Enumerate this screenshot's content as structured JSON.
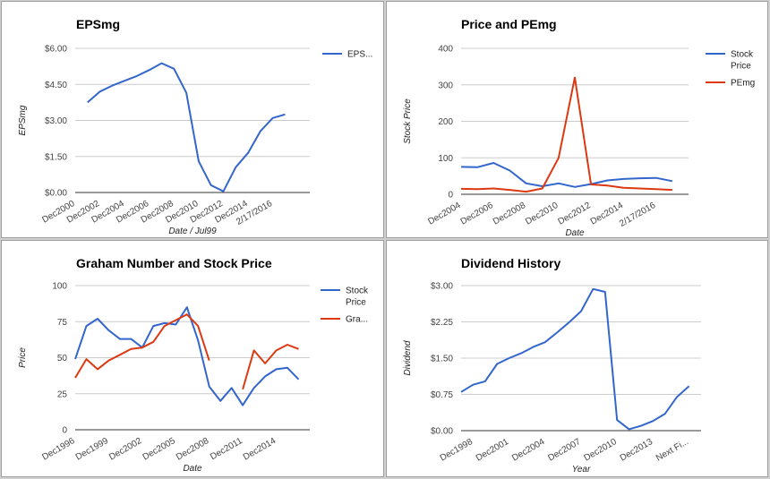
{
  "chart_data": [
    {
      "type": "line",
      "title": "EPSmg",
      "xlabel": "Date / Jul99",
      "ylabel": "EPSmg",
      "ylim": [
        0,
        6
      ],
      "yticks": [
        0,
        1.5,
        3,
        4.5,
        6
      ],
      "ytick_labels": [
        "$0.00",
        "$1.50",
        "$3.00",
        "$4.50",
        "$6.00"
      ],
      "xlim": [
        0,
        19
      ],
      "xticks": [
        0,
        2,
        4,
        6,
        8,
        10,
        12,
        14,
        16
      ],
      "xtick_labels": [
        "Dec2000",
        "Dec2002",
        "Dec2004",
        "Dec2006",
        "Dec2008",
        "Dec2010",
        "Dec2012",
        "Dec2014",
        "2/17/2016"
      ],
      "legend_position": "right",
      "series": [
        {
          "name": "EPS...",
          "color": "#3366cc",
          "x": [
            1,
            2,
            3,
            4,
            5,
            6,
            7,
            8,
            9,
            10,
            11,
            12,
            13,
            14,
            15,
            16,
            17,
            18
          ],
          "values": [
            3.75,
            4.2,
            4.45,
            4.65,
            4.85,
            5.1,
            5.38,
            5.15,
            4.15,
            1.3,
            0.3,
            0.05,
            1.05,
            1.65,
            2.55,
            3.1,
            3.25,
            null
          ]
        }
      ]
    },
    {
      "type": "line",
      "title": "Price and PEmg",
      "xlabel": "Date",
      "ylabel": "Stock Price",
      "ylim": [
        0,
        400
      ],
      "yticks": [
        0,
        100,
        200,
        300,
        400
      ],
      "ytick_labels": [
        "0",
        "100",
        "200",
        "300",
        "400"
      ],
      "xlim": [
        0,
        14
      ],
      "xticks": [
        0,
        2,
        4,
        6,
        8,
        10,
        12
      ],
      "xtick_labels": [
        "Dec2004",
        "Dec2006",
        "Dec2008",
        "Dec2010",
        "Dec2012",
        "Dec2014",
        "2/17/2016"
      ],
      "legend_position": "right",
      "series": [
        {
          "name": "Stock Price",
          "color": "#3366cc",
          "x": [
            0,
            1,
            2,
            3,
            4,
            5,
            6,
            7,
            8,
            9,
            10,
            11,
            12,
            13
          ],
          "values": [
            75,
            74,
            86,
            65,
            30,
            22,
            30,
            20,
            28,
            38,
            42,
            44,
            45,
            36
          ]
        },
        {
          "name": "PEmg",
          "color": "#dc3912",
          "x": [
            0,
            1,
            2,
            3,
            4,
            5,
            6,
            7,
            8,
            9,
            10,
            11,
            12,
            13
          ],
          "values": [
            15,
            14,
            16,
            12,
            7,
            16,
            100,
            320,
            27,
            24,
            18,
            16,
            14,
            12
          ]
        }
      ]
    },
    {
      "type": "line",
      "title": "Graham Number and Stock Price",
      "xlabel": "Date",
      "ylabel": "Price",
      "ylim": [
        0,
        100
      ],
      "yticks": [
        0,
        25,
        50,
        75,
        100
      ],
      "ytick_labels": [
        "0",
        "25",
        "50",
        "75",
        "100"
      ],
      "xlim": [
        0,
        21
      ],
      "xticks": [
        0,
        3,
        6,
        9,
        12,
        15,
        18
      ],
      "xtick_labels": [
        "Dec1996",
        "Dec1999",
        "Dec2002",
        "Dec2005",
        "Dec2008",
        "Dec2011",
        "Dec2014"
      ],
      "legend_position": "right",
      "series": [
        {
          "name": "Stock Price",
          "color": "#3366cc",
          "x": [
            0,
            1,
            2,
            3,
            4,
            5,
            6,
            7,
            8,
            9,
            10,
            11,
            12,
            13,
            14,
            15,
            16,
            17,
            18,
            19,
            20
          ],
          "values": [
            49,
            72,
            77,
            69,
            63,
            63,
            57,
            72,
            74,
            73,
            85,
            62,
            30,
            20,
            29,
            17,
            29,
            37,
            42,
            43,
            35
          ]
        },
        {
          "name": "Gra...",
          "color": "#dc3912",
          "x": [
            0,
            1,
            2,
            3,
            4,
            5,
            6,
            7,
            8,
            9,
            10,
            11,
            12,
            13,
            14,
            15,
            16,
            17,
            18,
            19,
            20
          ],
          "values": [
            36,
            49,
            42,
            48,
            52,
            56,
            57,
            61,
            72,
            76,
            80,
            72,
            48,
            null,
            null,
            28,
            55,
            46,
            55,
            59,
            56
          ]
        }
      ]
    },
    {
      "type": "line",
      "title": "Dividend History",
      "xlabel": "Year",
      "ylabel": "Dividend",
      "ylim": [
        0,
        3
      ],
      "yticks": [
        0,
        0.75,
        1.5,
        2.25,
        3
      ],
      "ytick_labels": [
        "$0.00",
        "$0.75",
        "$1.50",
        "$2.25",
        "$3.00"
      ],
      "xlim": [
        0,
        20
      ],
      "xticks": [
        1,
        4,
        7,
        10,
        13,
        16,
        19
      ],
      "xtick_labels": [
        "Dec1998",
        "Dec2001",
        "Dec2004",
        "Dec2007",
        "Dec2010",
        "Dec2013",
        "Next Fi..."
      ],
      "legend_position": "none",
      "series": [
        {
          "name": "",
          "color": "#3366cc",
          "x": [
            0,
            1,
            2,
            3,
            4,
            5,
            6,
            7,
            8,
            9,
            10,
            11,
            11.5,
            12,
            13,
            14,
            15,
            16,
            17,
            18,
            19
          ],
          "values": [
            0.8,
            0.95,
            1.02,
            1.38,
            1.5,
            1.6,
            1.73,
            1.83,
            2.03,
            2.24,
            2.47,
            2.93,
            2.9,
            2.87,
            0.22,
            0.03,
            0.1,
            0.2,
            0.35,
            0.7,
            0.92
          ]
        }
      ]
    }
  ]
}
